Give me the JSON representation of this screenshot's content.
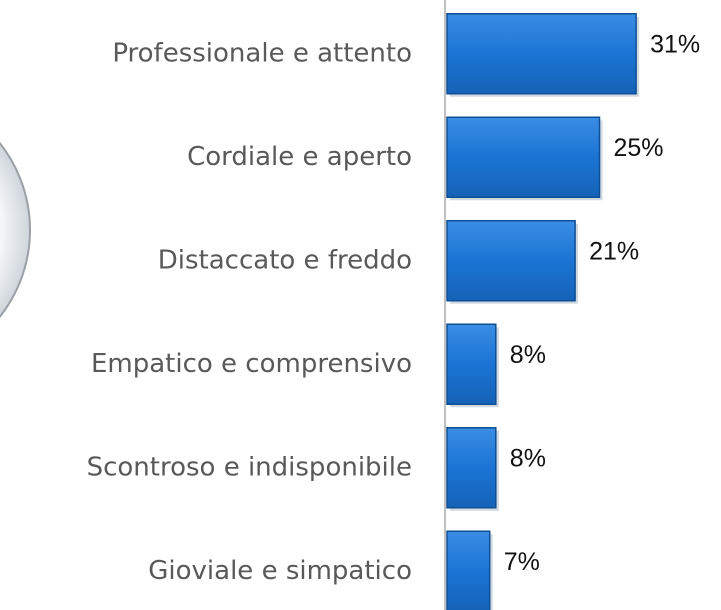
{
  "chart_data": {
    "type": "bar",
    "orientation": "horizontal",
    "categories": [
      "Professionale e attento",
      "Cordiale e aperto",
      "Distaccato e freddo",
      "Empatico e comprensivo",
      "Scontroso e indisponibile",
      "Gioviale e simpatico"
    ],
    "values": [
      31,
      25,
      21,
      8,
      8,
      7
    ],
    "value_labels": [
      "31%",
      "25%",
      "21%",
      "8%",
      "8%",
      "7%"
    ],
    "color": "#1b74d4"
  }
}
